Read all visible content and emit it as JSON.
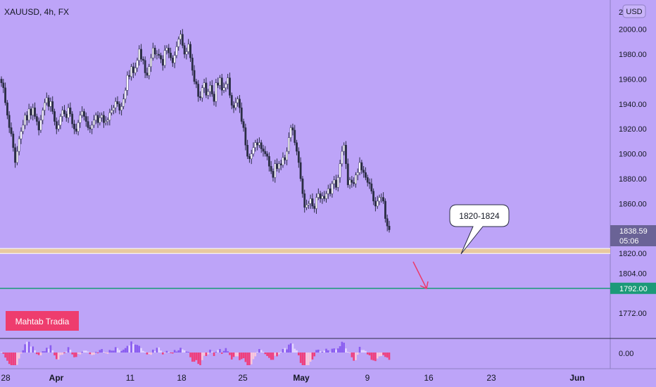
{
  "chart_data": {
    "type": "candlestick",
    "symbol_label": "XAUUSD, 4h, FX",
    "currency_button": "USD",
    "price_axis": {
      "range": [
        1762,
        2016
      ],
      "ticks": [
        "2000.00",
        "1980.00",
        "1960.00",
        "1940.00",
        "1920.00",
        "1900.00",
        "1880.00",
        "1860.00",
        "1820.00",
        "1804.00",
        "1772.00"
      ],
      "tick_values": [
        2000,
        1980,
        1960,
        1940,
        1920,
        1900,
        1880,
        1860,
        1820,
        1804,
        1772
      ],
      "partial_top_tick": "2"
    },
    "time_axis": {
      "labels": [
        "28",
        "Apr",
        "11",
        "18",
        "25",
        "May",
        "9",
        "16",
        "23",
        "Jun"
      ],
      "bold": [
        false,
        true,
        false,
        false,
        false,
        true,
        false,
        false,
        false,
        true
      ]
    },
    "current_price": {
      "value": "1838.59",
      "countdown": "05:06"
    },
    "target_level": {
      "value": 1792,
      "label": "1792.00"
    },
    "zone": {
      "low": 1820,
      "high": 1824,
      "callout": "1820-1824"
    },
    "closes_4h": [
      1957,
      1953,
      1941,
      1931,
      1921,
      1916,
      1905,
      1893,
      1902,
      1912,
      1918,
      1923,
      1931,
      1927,
      1936,
      1931,
      1937,
      1930,
      1926,
      1919,
      1927,
      1935,
      1941,
      1945,
      1938,
      1942,
      1934,
      1926,
      1920,
      1923,
      1930,
      1935,
      1932,
      1929,
      1937,
      1932,
      1924,
      1920,
      1918,
      1925,
      1931,
      1934,
      1930,
      1926,
      1921,
      1920,
      1923,
      1927,
      1931,
      1925,
      1929,
      1931,
      1925,
      1926,
      1927,
      1933,
      1935,
      1937,
      1942,
      1940,
      1935,
      1938,
      1944,
      1951,
      1963,
      1962,
      1970,
      1965,
      1969,
      1975,
      1984,
      1976,
      1975,
      1965,
      1963,
      1970,
      1977,
      1985,
      1980,
      1980,
      1979,
      1976,
      1971,
      1983,
      1985,
      1981,
      1977,
      1973,
      1979,
      1986,
      1992,
      1996,
      1987,
      1980,
      1982,
      1988,
      1977,
      1967,
      1958,
      1956,
      1946,
      1945,
      1953,
      1957,
      1947,
      1950,
      1955,
      1948,
      1942,
      1957,
      1955,
      1961,
      1951,
      1953,
      1956,
      1961,
      1947,
      1939,
      1937,
      1941,
      1944,
      1937,
      1926,
      1921,
      1907,
      1898,
      1896,
      1900,
      1905,
      1909,
      1907,
      1909,
      1904,
      1902,
      1900,
      1898,
      1890,
      1886,
      1881,
      1892,
      1888,
      1892,
      1891,
      1897,
      1895,
      1902,
      1913,
      1921,
      1919,
      1909,
      1902,
      1893,
      1880,
      1868,
      1857,
      1859,
      1860,
      1864,
      1858,
      1856,
      1865,
      1868,
      1864,
      1866,
      1864,
      1868,
      1872,
      1868,
      1876,
      1879,
      1873,
      1881,
      1892,
      1902,
      1907,
      1892,
      1875,
      1879,
      1877,
      1876,
      1883,
      1885,
      1893,
      1887,
      1885,
      1881,
      1877,
      1876,
      1870,
      1862,
      1858,
      1862,
      1865,
      1865,
      1862,
      1848,
      1842,
      1839
    ],
    "oscillator": {
      "zero_label": "0.00"
    }
  },
  "watermark": {
    "text": "Mahtab Tradia"
  },
  "colors": {
    "background": "#bda4f8",
    "candle_up": "#ffffff",
    "candle_down": "#2a2c44",
    "zone_fill": "#e8c9a0",
    "target_line": "#1b9a78",
    "price_tag": "#6a6396",
    "arrow": "#ec3a6a",
    "watermark_bg": "#ee3d6e",
    "osc_pos": "#8a5df0",
    "osc_pos_light": "#e4d6ff",
    "osc_neg": "#ef3f7d",
    "osc_neg_light": "#f9c6dc"
  }
}
